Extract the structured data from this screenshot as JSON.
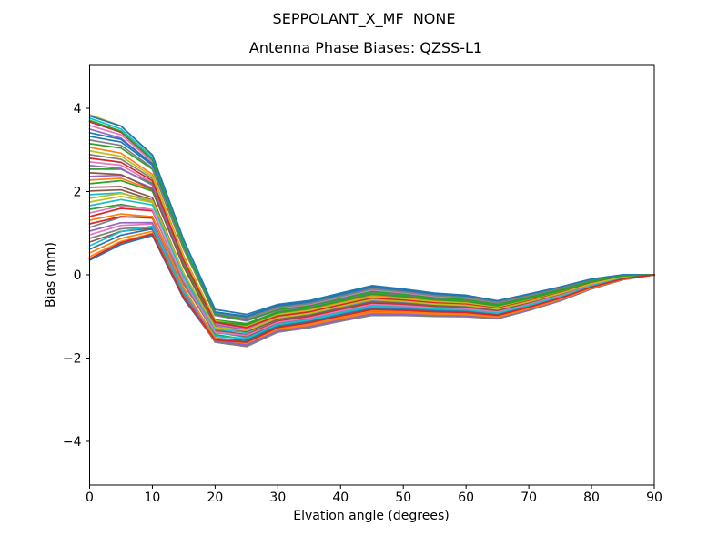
{
  "chart_data": {
    "type": "line",
    "title": "SEPPOLANT_X_MF  NONE",
    "subtitle": "Antenna Phase Biases: QZSS-L1",
    "xlabel": "Elvation angle (degrees)",
    "ylabel": "Bias (mm)",
    "xlim": [
      0,
      90
    ],
    "ylim": [
      -5.05,
      5.05
    ],
    "x_ticks": [
      0,
      10,
      20,
      30,
      40,
      50,
      60,
      70,
      80,
      90
    ],
    "y_ticks": [
      -4,
      -2,
      0,
      2,
      4
    ],
    "grid": false,
    "legend": "none",
    "background_color": "#ffffff",
    "axis_color": "#000000",
    "palette": [
      "#1f77b4",
      "#ff7f0e",
      "#2ca02c",
      "#d62728",
      "#9467bd",
      "#8c564b",
      "#e377c2",
      "#7f7f7f",
      "#bcbd22",
      "#17becf"
    ],
    "x": [
      0,
      5,
      10,
      15,
      20,
      25,
      30,
      35,
      40,
      45,
      50,
      55,
      60,
      65,
      70,
      75,
      80,
      85,
      90
    ],
    "band_center": [
      2.1,
      2.15,
      1.9,
      0.1,
      -1.25,
      -1.35,
      -1.05,
      -0.95,
      -0.78,
      -0.62,
      -0.66,
      -0.72,
      -0.75,
      -0.84,
      -0.66,
      -0.46,
      -0.22,
      -0.06,
      0.0
    ],
    "band_half_width": [
      1.75,
      1.45,
      1.0,
      0.75,
      0.42,
      0.4,
      0.34,
      0.33,
      0.34,
      0.36,
      0.32,
      0.28,
      0.26,
      0.22,
      0.2,
      0.17,
      0.12,
      0.06,
      0.0
    ],
    "start_weight": [
      1.0,
      0.93,
      0.85,
      0.7,
      0.42,
      0.22,
      0.12,
      0.08,
      0.06,
      0.05,
      0.05,
      0.05,
      0.05,
      0.05,
      0.05,
      0.05,
      0.05,
      0.05,
      0.05
    ],
    "series": [
      {
        "t_start": -1.0,
        "t_end": -0.7
      },
      {
        "t_start": 0.55,
        "t_end": 0.3
      },
      {
        "t_start": -0.3,
        "t_end": -0.55
      },
      {
        "t_start": 0.9,
        "t_end": 0.6
      },
      {
        "t_start": 0.15,
        "t_end": 0.4
      },
      {
        "t_start": -0.75,
        "t_end": -0.95
      },
      {
        "t_start": 0.35,
        "t_end": 0.1
      },
      {
        "t_start": -0.55,
        "t_end": -0.2
      },
      {
        "t_start": 1.0,
        "t_end": 0.75
      },
      {
        "t_start": -0.1,
        "t_end": -0.45
      },
      {
        "t_start": 0.7,
        "t_end": 0.95
      },
      {
        "t_start": -0.9,
        "t_end": -0.6
      },
      {
        "t_start": 0.25,
        "t_end": 0.5
      },
      {
        "t_start": -0.4,
        "t_end": -0.15
      },
      {
        "t_start": 0.8,
        "t_end": 0.55
      },
      {
        "t_start": 0.0,
        "t_end": -0.3
      },
      {
        "t_start": -0.65,
        "t_end": -0.85
      },
      {
        "t_start": 0.45,
        "t_end": 0.2
      },
      {
        "t_start": -0.2,
        "t_end": 0.05
      },
      {
        "t_start": 0.95,
        "t_end": 0.7
      },
      {
        "t_start": -0.85,
        "t_end": -0.5
      },
      {
        "t_start": 0.1,
        "t_end": 0.35
      },
      {
        "t_start": 0.6,
        "t_end": 0.85
      },
      {
        "t_start": -0.5,
        "t_end": -0.75
      },
      {
        "t_start": 0.3,
        "t_end": 0.0
      },
      {
        "t_start": -0.05,
        "t_end": -0.4
      },
      {
        "t_start": 0.85,
        "t_end": 0.65
      },
      {
        "t_start": -0.7,
        "t_end": -1.0
      },
      {
        "t_start": 0.5,
        "t_end": 0.25
      },
      {
        "t_start": -0.25,
        "t_end": -0.05
      },
      {
        "t_start": 0.75,
        "t_end": 0.9
      },
      {
        "t_start": -0.95,
        "t_end": -0.65
      },
      {
        "t_start": 0.05,
        "t_end": 0.45
      },
      {
        "t_start": 0.4,
        "t_end": 0.15
      },
      {
        "t_start": -0.6,
        "t_end": -0.9
      },
      {
        "t_start": 0.2,
        "t_end": -0.1
      },
      {
        "t_start": -0.35,
        "t_end": -0.25
      },
      {
        "t_start": 0.65,
        "t_end": 0.8
      },
      {
        "t_start": -0.15,
        "t_end": 0.08
      },
      {
        "t_start": -0.8,
        "t_end": -0.35
      },
      {
        "t_start": 0.98,
        "t_end": 1.0
      },
      {
        "t_start": -0.45,
        "t_end": -0.8
      },
      {
        "t_start": 0.92,
        "t_end": 0.58
      },
      {
        "t_start": -0.98,
        "t_end": -0.58
      }
    ]
  }
}
